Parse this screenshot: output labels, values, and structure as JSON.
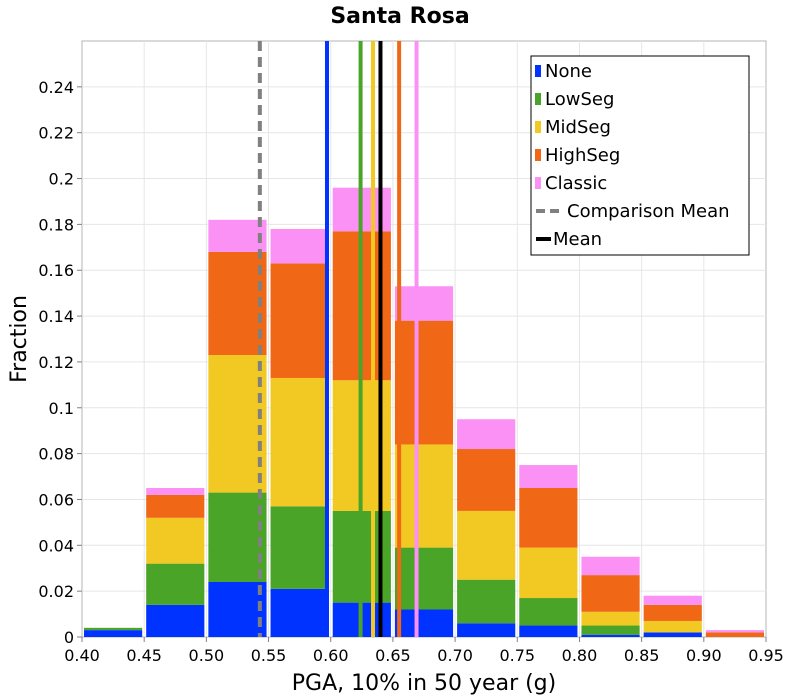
{
  "chart_data": {
    "type": "bar",
    "stacked": true,
    "title": "Santa Rosa",
    "xlabel": "PGA, 10% in 50 year (g)",
    "ylabel": "Fraction",
    "xlim": [
      0.4,
      0.95
    ],
    "ylim": [
      0,
      0.26
    ],
    "x_ticks": [
      "0.40",
      "0.45",
      "0.50",
      "0.55",
      "0.60",
      "0.65",
      "0.70",
      "0.75",
      "0.80",
      "0.85",
      "0.90",
      "0.95"
    ],
    "y_ticks": [
      "0",
      "0.02",
      "0.04",
      "0.06",
      "0.08",
      "0.1",
      "0.12",
      "0.14",
      "0.16",
      "0.18",
      "0.2",
      "0.22",
      "0.24"
    ],
    "grid": true,
    "legend_position": "top-right",
    "bins": [
      0.425,
      0.475,
      0.525,
      0.575,
      0.625,
      0.675,
      0.725,
      0.775,
      0.825,
      0.875,
      0.925
    ],
    "bin_width": 0.05,
    "series": [
      {
        "name": "None",
        "color": "#0033ff",
        "values": [
          0.003,
          0.014,
          0.024,
          0.021,
          0.015,
          0.012,
          0.006,
          0.005,
          0.001,
          0.002,
          0.0
        ]
      },
      {
        "name": "LowSeg",
        "color": "#4aa428",
        "values": [
          0.001,
          0.018,
          0.039,
          0.036,
          0.04,
          0.027,
          0.019,
          0.012,
          0.004,
          0.0,
          0.0
        ]
      },
      {
        "name": "MidSeg",
        "color": "#f1c922",
        "values": [
          0.0,
          0.02,
          0.06,
          0.056,
          0.057,
          0.045,
          0.03,
          0.022,
          0.006,
          0.005,
          0.0
        ]
      },
      {
        "name": "HighSeg",
        "color": "#f06716",
        "values": [
          0.0,
          0.01,
          0.045,
          0.05,
          0.065,
          0.054,
          0.027,
          0.026,
          0.016,
          0.007,
          0.002
        ]
      },
      {
        "name": "Classic",
        "color": "#fb90f5",
        "values": [
          0.0,
          0.003,
          0.014,
          0.015,
          0.019,
          0.015,
          0.013,
          0.01,
          0.008,
          0.004,
          0.001
        ]
      }
    ],
    "vertical_lines": [
      {
        "name": "None",
        "x": 0.597,
        "color": "#0033ff",
        "style": "solid"
      },
      {
        "name": "LowSeg",
        "x": 0.624,
        "color": "#4aa428",
        "style": "solid"
      },
      {
        "name": "MidSeg",
        "x": 0.634,
        "color": "#f1c922",
        "style": "solid"
      },
      {
        "name": "HighSeg",
        "x": 0.655,
        "color": "#f06716",
        "style": "solid"
      },
      {
        "name": "Classic",
        "x": 0.669,
        "color": "#fb90f5",
        "style": "solid"
      },
      {
        "name": "Comparison Mean",
        "x": 0.543,
        "color": "#808080",
        "style": "dashed"
      },
      {
        "name": "Mean",
        "x": 0.64,
        "color": "#000000",
        "style": "solid"
      }
    ],
    "legend": [
      {
        "label": "None",
        "color": "#0033ff",
        "kind": "box"
      },
      {
        "label": "LowSeg",
        "color": "#4aa428",
        "kind": "box"
      },
      {
        "label": "MidSeg",
        "color": "#f1c922",
        "kind": "box"
      },
      {
        "label": "HighSeg",
        "color": "#f06716",
        "kind": "box"
      },
      {
        "label": "Classic",
        "color": "#fb90f5",
        "kind": "box"
      },
      {
        "label": "Comparison Mean",
        "color": "#808080",
        "kind": "dashed"
      },
      {
        "label": "Mean",
        "color": "#000000",
        "kind": "line"
      }
    ]
  }
}
